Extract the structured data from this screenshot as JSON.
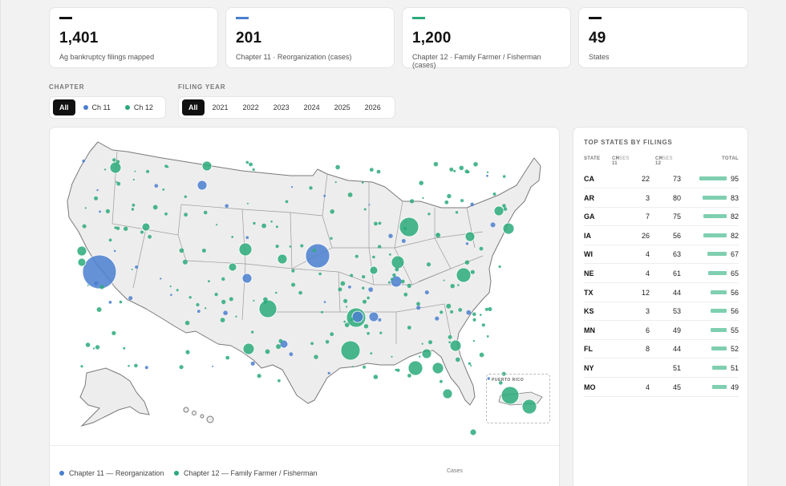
{
  "colors": {
    "ch11": "#4a7fcf",
    "ch12": "#2aaa7a",
    "neutral": "#111111",
    "bar": "#7fcfb0"
  },
  "stats": [
    {
      "value": "1,401",
      "label": "Ag bankruptcy filings mapped",
      "accent": "#111111"
    },
    {
      "value": "201",
      "label": "Chapter 11 · Reorganization (cases)",
      "accent": "#4a7fcf"
    },
    {
      "value": "1,200",
      "label": "Chapter 12 · Family Farmer / Fisherman (cases)",
      "accent": "#2aaa7a"
    },
    {
      "value": "49",
      "label": "States",
      "accent": "#111111"
    }
  ],
  "filters": {
    "chapter_title": "CHAPTER",
    "chapter_options": [
      {
        "label": "All",
        "active": true
      },
      {
        "label": "Ch 11",
        "active": false,
        "color": "#4a7fcf"
      },
      {
        "label": "Ch 12",
        "active": false,
        "color": "#2aaa7a"
      }
    ],
    "year_title": "FILING YEAR",
    "year_options": [
      {
        "label": "All",
        "active": true
      },
      {
        "label": "2021"
      },
      {
        "label": "2022"
      },
      {
        "label": "2023"
      },
      {
        "label": "2024"
      },
      {
        "label": "2025"
      },
      {
        "label": "2026"
      }
    ]
  },
  "map": {
    "inset_label": "PUERTO RICO",
    "legend": {
      "ch11": "Chapter 11 — Reorganization",
      "ch12": "Chapter 12 — Family Farmer / Fisherman",
      "size_label": "Cases"
    }
  },
  "table": {
    "title": "TOP STATES BY FILINGS",
    "headers": {
      "state": "STATE",
      "ch11": "CH 11",
      "ch12": "CH 12",
      "unit": "CASES",
      "total": "TOTAL"
    },
    "max_total": 95,
    "rows": [
      {
        "state": "CA",
        "ch11": "22",
        "ch12": "73",
        "total": "95"
      },
      {
        "state": "AR",
        "ch11": "3",
        "ch12": "80",
        "total": "83"
      },
      {
        "state": "GA",
        "ch11": "7",
        "ch12": "75",
        "total": "82"
      },
      {
        "state": "IA",
        "ch11": "26",
        "ch12": "56",
        "total": "82"
      },
      {
        "state": "WI",
        "ch11": "4",
        "ch12": "63",
        "total": "67"
      },
      {
        "state": "NE",
        "ch11": "4",
        "ch12": "61",
        "total": "65"
      },
      {
        "state": "TX",
        "ch11": "12",
        "ch12": "44",
        "total": "56"
      },
      {
        "state": "KS",
        "ch11": "3",
        "ch12": "53",
        "total": "56"
      },
      {
        "state": "MN",
        "ch11": "6",
        "ch12": "49",
        "total": "55"
      },
      {
        "state": "FL",
        "ch11": "8",
        "ch12": "44",
        "total": "52"
      },
      {
        "state": "NY",
        "ch11": "",
        "ch12": "51",
        "total": "51"
      },
      {
        "state": "MO",
        "ch11": "4",
        "ch12": "45",
        "total": "49"
      }
    ]
  }
}
